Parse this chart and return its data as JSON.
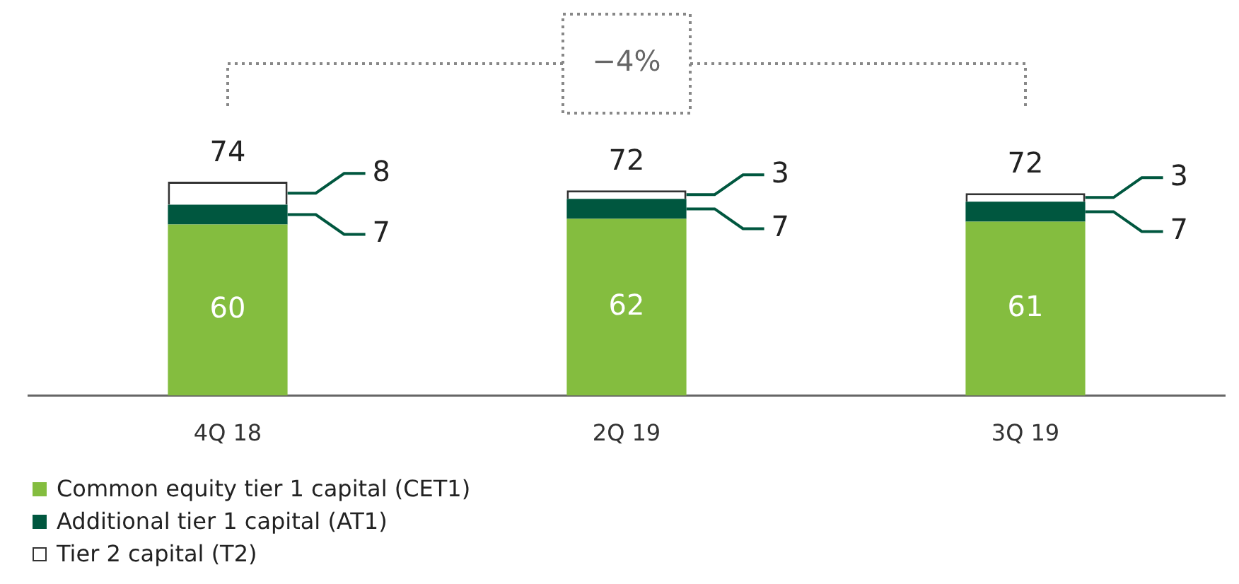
{
  "chart_data": {
    "type": "bar",
    "stacked": true,
    "data_labels": true,
    "legend": "bottom left",
    "categories": [
      "4Q 18",
      "2Q 19",
      "3Q 19"
    ],
    "series": [
      {
        "name": "Common equity tier 1 capital (CET1)",
        "color": "#84bd3f",
        "values": [
          60,
          62,
          61
        ]
      },
      {
        "name": "Additional tier 1 capital (AT1)",
        "color": "#00573f",
        "values": [
          7,
          7,
          7
        ]
      },
      {
        "name": "Tier 2 capital (T2)",
        "color": "#ffffff",
        "values": [
          8,
          3,
          3
        ]
      }
    ],
    "totals": [
      "74",
      "72",
      "72"
    ],
    "annotations": [
      "−4%"
    ]
  }
}
